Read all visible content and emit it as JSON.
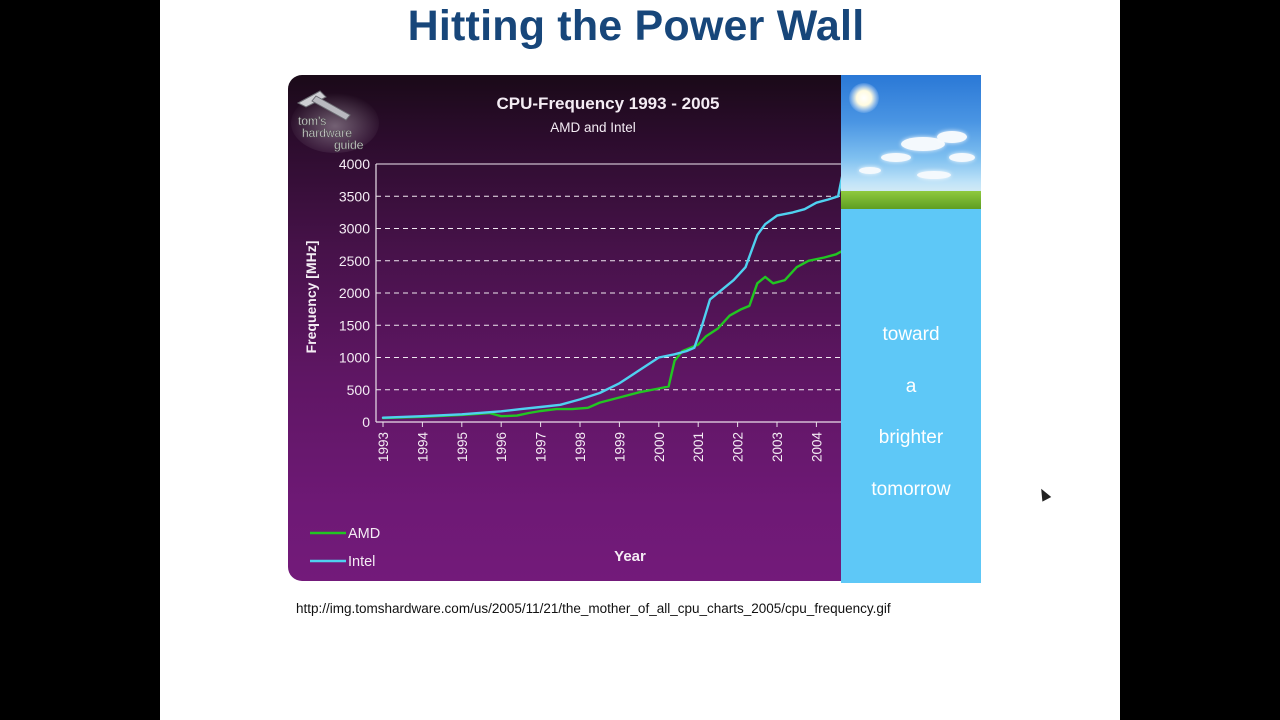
{
  "slide": {
    "title": "Hitting the Power Wall",
    "source_url": "http://img.tomshardware.com/us/2005/11/21/the_mother_of_all_cpu_charts_2005/cpu_frequency.gif"
  },
  "logo": {
    "text_line1": "tom's",
    "text_line2": "hardware",
    "text_line3": "guide",
    "icon": "hammer-icon"
  },
  "side_panel": {
    "lines": [
      "toward",
      "a",
      "brighter",
      "tomorrow"
    ]
  },
  "colors": {
    "amd": "#22c622",
    "intel": "#4fd1f0",
    "title_blue": "#17467a",
    "panel_blue": "#5ec8f7"
  },
  "chart_data": {
    "type": "line",
    "title": "CPU-Frequency 1993 - 2005",
    "subtitle": "AMD and Intel",
    "xlabel": "Year",
    "ylabel": "Frequency [MHz]",
    "ylim": [
      0,
      4000
    ],
    "yticks": [
      "0",
      "500",
      "1000",
      "1500",
      "2000",
      "2500",
      "3000",
      "3500",
      "4000"
    ],
    "xticks": [
      "1993",
      "1994",
      "1995",
      "1996",
      "1997",
      "1998",
      "1999",
      "2000",
      "2001",
      "2002",
      "2003",
      "2004"
    ],
    "grid": "horizontal dashed",
    "legend_position": "bottom-left",
    "series": [
      {
        "name": "AMD",
        "color": "#22c622",
        "points": [
          [
            1993,
            60
          ],
          [
            1994,
            80
          ],
          [
            1995,
            110
          ],
          [
            1995.7,
            140
          ],
          [
            1996,
            90
          ],
          [
            1996.4,
            100
          ],
          [
            1996.7,
            140
          ],
          [
            1997,
            170
          ],
          [
            1997.4,
            200
          ],
          [
            1997.8,
            200
          ],
          [
            1998.2,
            220
          ],
          [
            1998.5,
            300
          ],
          [
            1999,
            380
          ],
          [
            1999.5,
            460
          ],
          [
            2000,
            520
          ],
          [
            2000.25,
            550
          ],
          [
            2000.4,
            950
          ],
          [
            2000.6,
            1100
          ],
          [
            2001,
            1200
          ],
          [
            2001.2,
            1330
          ],
          [
            2001.5,
            1450
          ],
          [
            2001.8,
            1650
          ],
          [
            2002.1,
            1750
          ],
          [
            2002.3,
            1800
          ],
          [
            2002.5,
            2150
          ],
          [
            2002.7,
            2250
          ],
          [
            2002.9,
            2150
          ],
          [
            2003.2,
            2200
          ],
          [
            2003.5,
            2400
          ],
          [
            2003.8,
            2500
          ],
          [
            2004.2,
            2550
          ],
          [
            2004.5,
            2600
          ],
          [
            2004.65,
            2650
          ]
        ]
      },
      {
        "name": "Intel",
        "color": "#4fd1f0",
        "points": [
          [
            1993,
            66
          ],
          [
            1994,
            90
          ],
          [
            1995,
            120
          ],
          [
            1996,
            166
          ],
          [
            1996.5,
            200
          ],
          [
            1997,
            233
          ],
          [
            1997.5,
            266
          ],
          [
            1998,
            350
          ],
          [
            1998.5,
            450
          ],
          [
            1999,
            600
          ],
          [
            1999.5,
            800
          ],
          [
            2000,
            1000
          ],
          [
            2000.4,
            1050
          ],
          [
            2000.7,
            1100
          ],
          [
            2000.9,
            1150
          ],
          [
            2001.1,
            1500
          ],
          [
            2001.3,
            1900
          ],
          [
            2001.6,
            2050
          ],
          [
            2001.9,
            2200
          ],
          [
            2002.2,
            2400
          ],
          [
            2002.5,
            2900
          ],
          [
            2002.7,
            3066
          ],
          [
            2003,
            3200
          ],
          [
            2003.4,
            3250
          ],
          [
            2003.7,
            3300
          ],
          [
            2004,
            3400
          ],
          [
            2004.3,
            3450
          ],
          [
            2004.55,
            3500
          ],
          [
            2004.65,
            3800
          ]
        ]
      }
    ]
  }
}
